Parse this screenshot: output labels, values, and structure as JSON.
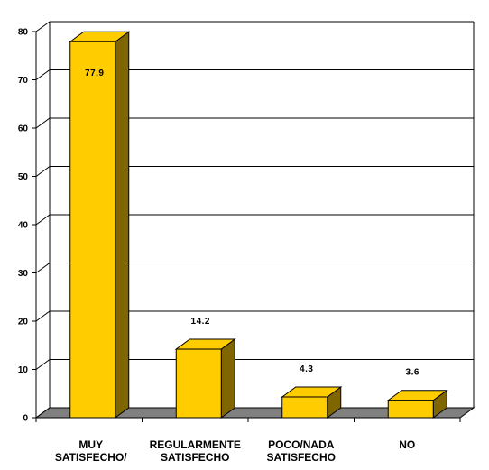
{
  "chart_data": {
    "type": "bar",
    "categories": [
      [
        "MUY",
        "SATISFECHO/"
      ],
      [
        "REGULARMENTE",
        "SATISFECHO"
      ],
      [
        "POCO/NADA",
        "SATISFECHO"
      ],
      [
        "NO",
        ""
      ]
    ],
    "values": [
      77.9,
      14.2,
      4.3,
      3.6
    ],
    "data_labels": [
      "77.9",
      "14.2",
      "4.3",
      "3.6"
    ],
    "title": "",
    "xlabel": "",
    "ylabel": "",
    "ylim": [
      0,
      80
    ],
    "yticks": [
      0,
      10,
      20,
      30,
      40,
      50,
      60,
      70,
      80
    ],
    "grid": true,
    "legend": "none",
    "colors": {
      "bar_front": "#FFCC00",
      "bar_side": "#806600",
      "bar_top": "#FFCC00",
      "floor": "#808080",
      "grid": "#000000"
    }
  }
}
